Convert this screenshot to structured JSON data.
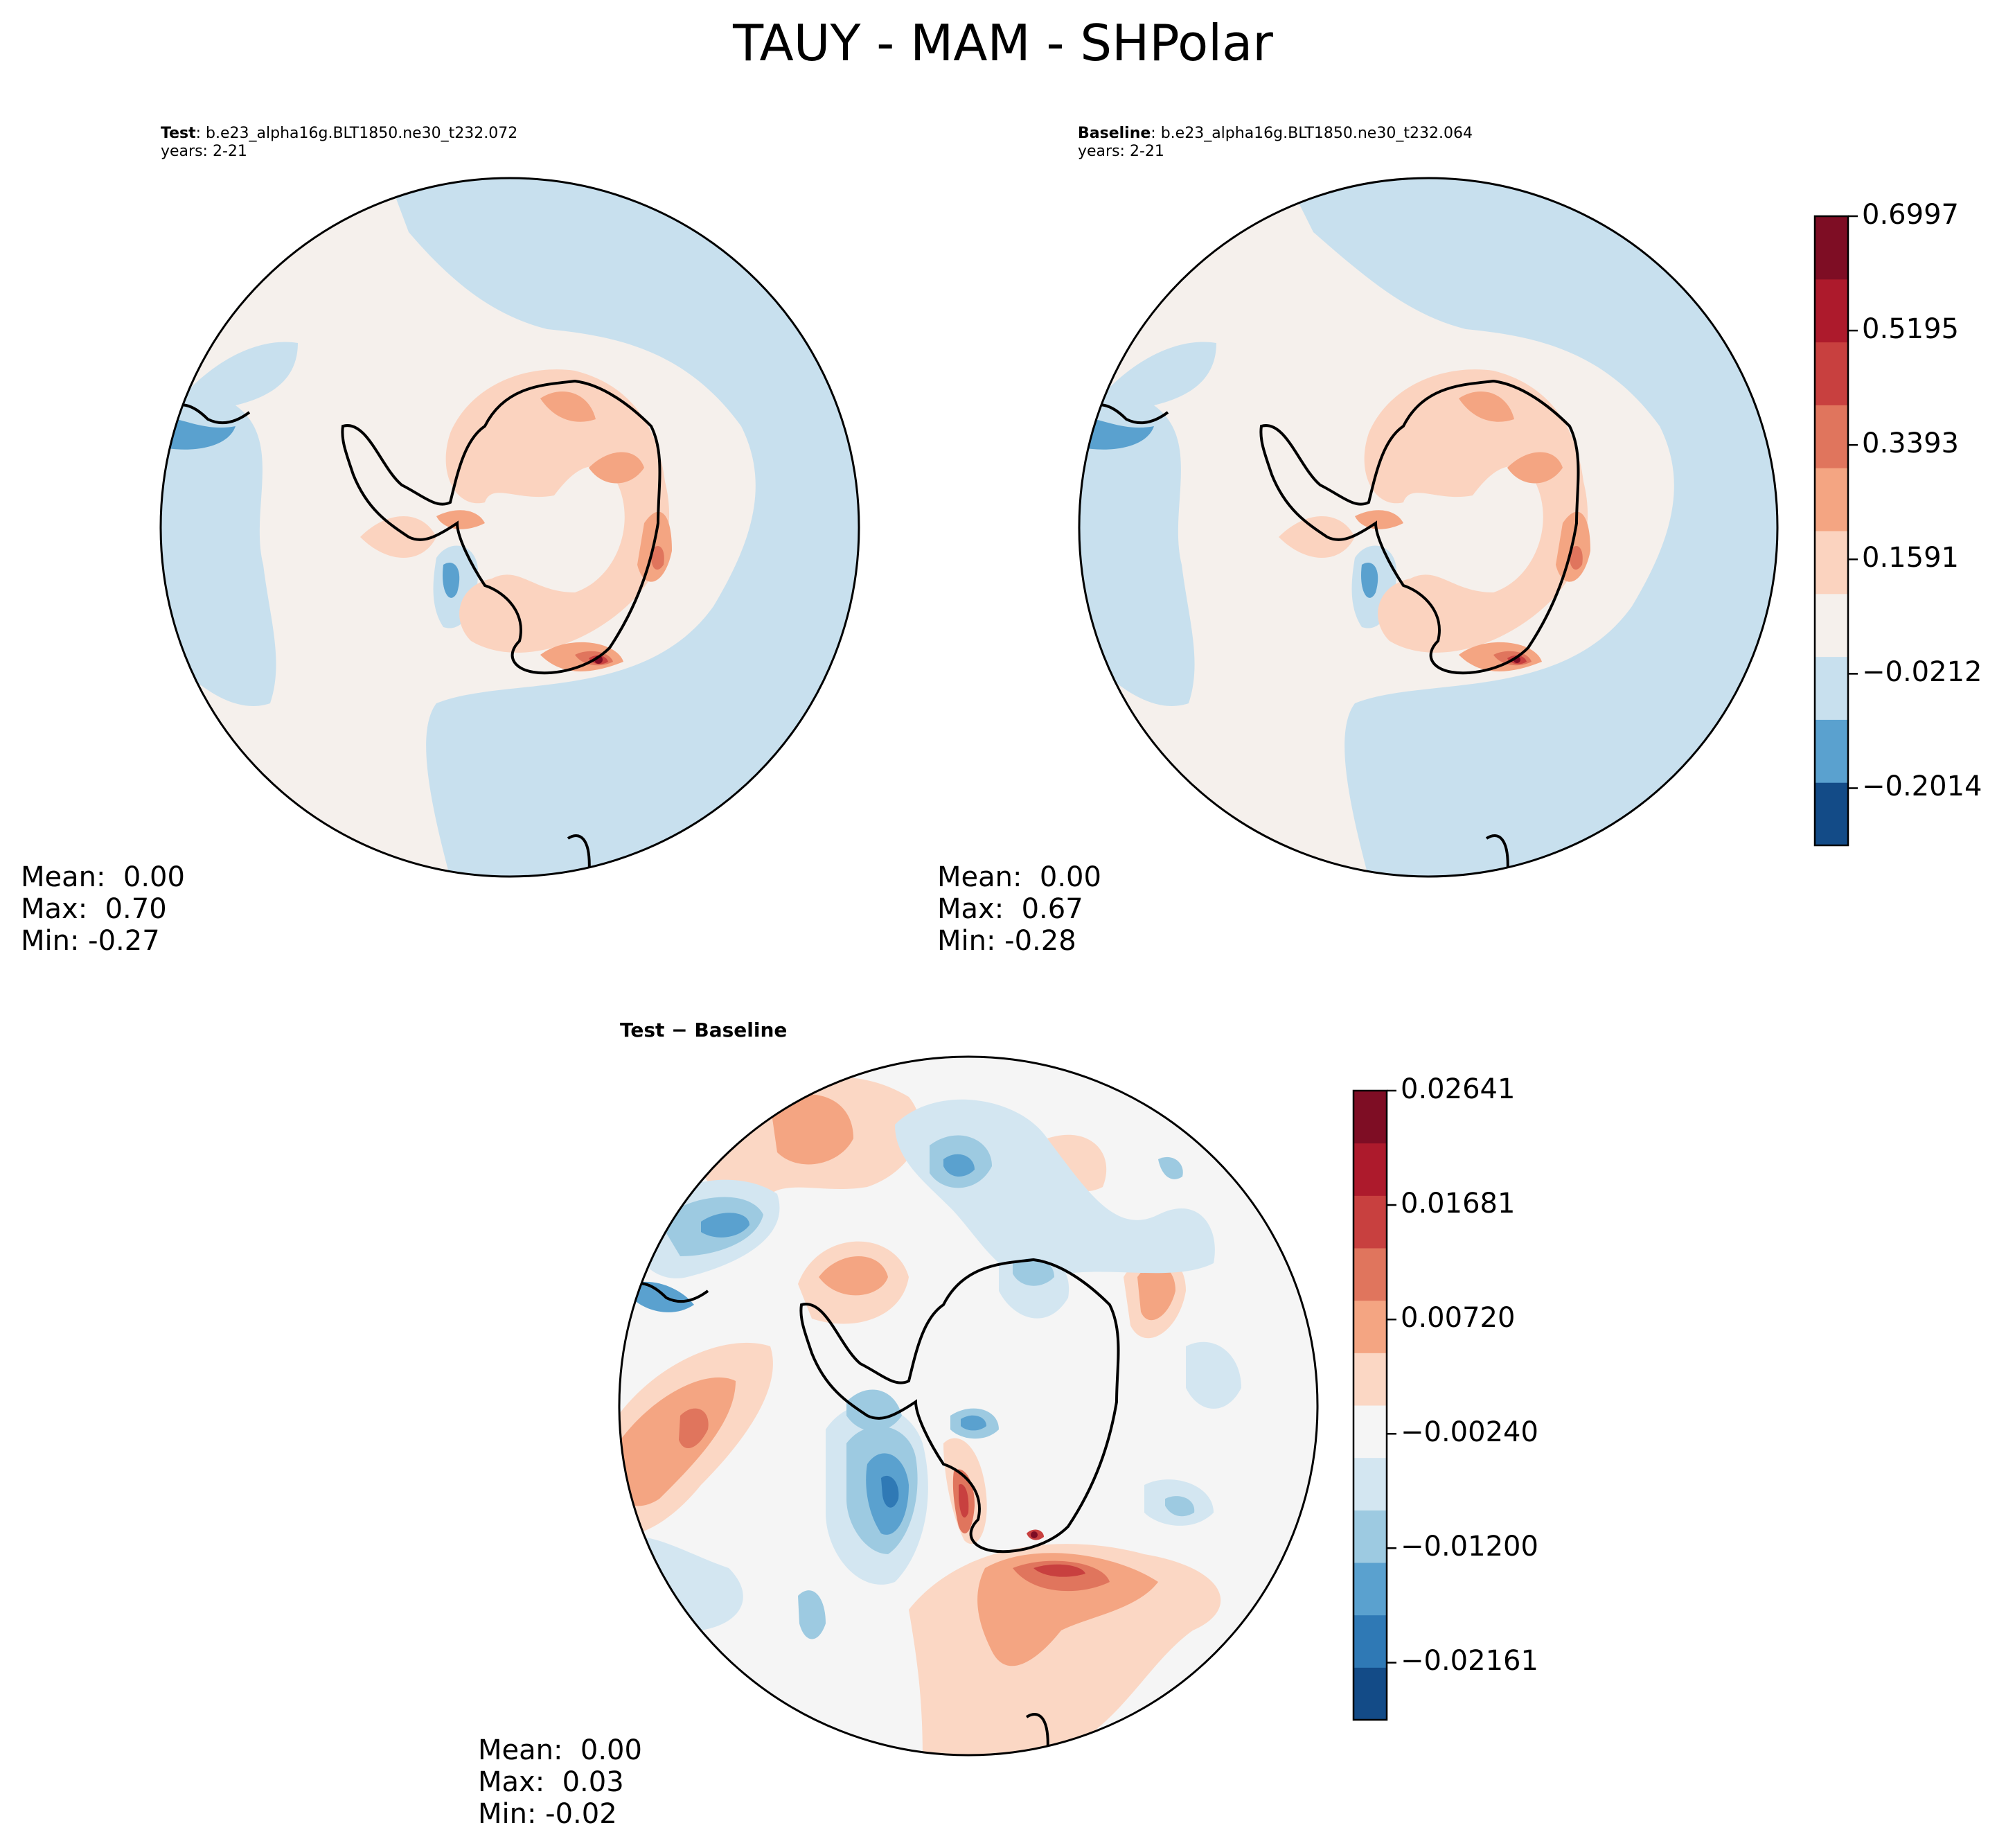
{
  "figure": {
    "title": "TAUY - MAM - SHPolar"
  },
  "panels": {
    "test": {
      "label_bold": "Test",
      "case": ": b.e23_alpha16g.BLT1850.ne30_t232.072",
      "years": "years: 2-21",
      "mean": "Mean:  0.00",
      "max": "Max:  0.70",
      "min": "Min: -0.27"
    },
    "baseline": {
      "label_bold": "Baseline",
      "case": ": b.e23_alpha16g.BLT1850.ne30_t232.064",
      "years": "years: 2-21",
      "mean": "Mean:  0.00",
      "max": "Max:  0.67",
      "min": "Min: -0.28"
    },
    "diff": {
      "title_a": "Test",
      "title_sep": " − ",
      "title_b": "Baseline",
      "mean": "Mean:  0.00",
      "max": "Max:  0.03",
      "min": "Min: -0.02"
    }
  },
  "chart_data": [
    {
      "type": "heatmap",
      "name": "test",
      "projection": "south polar stereographic",
      "variable": "TAUY",
      "season": "MAM",
      "stats": {
        "mean": 0.0,
        "max": 0.7,
        "min": -0.27
      }
    },
    {
      "type": "heatmap",
      "name": "baseline",
      "projection": "south polar stereographic",
      "variable": "TAUY",
      "season": "MAM",
      "stats": {
        "mean": 0.0,
        "max": 0.67,
        "min": -0.28
      }
    },
    {
      "type": "heatmap",
      "name": "test-baseline",
      "projection": "south polar stereographic",
      "stats": {
        "mean": 0.0,
        "max": 0.03,
        "min": -0.02
      }
    }
  ],
  "colorbars": {
    "main": {
      "range": [
        -0.2915,
        0.6997
      ],
      "colors": [
        "#134b87",
        "#5aa1cf",
        "#c8e0ee",
        "#f5f0ec",
        "#fbd3bf",
        "#f4a582",
        "#e0755d",
        "#c8403f",
        "#ad1a2c",
        "#7e0d24"
      ],
      "ticks": [
        {
          "value": -0.2014,
          "label": "−0.2014"
        },
        {
          "value": -0.0212,
          "label": "−0.0212"
        },
        {
          "value": 0.1591,
          "label": "0.1591"
        },
        {
          "value": 0.3393,
          "label": "0.3393"
        },
        {
          "value": 0.5195,
          "label": "0.5195"
        },
        {
          "value": 0.6997,
          "label": "0.6997"
        }
      ]
    },
    "diff": {
      "range": [
        -0.02641,
        0.02641
      ],
      "colors": [
        "#134b87",
        "#2f79b5",
        "#5aa1cf",
        "#9dcae1",
        "#d3e6f1",
        "#f5f5f5",
        "#fbd7c4",
        "#f4a582",
        "#e0755d",
        "#c8403f",
        "#ad1a2c",
        "#7e0d24"
      ],
      "ticks": [
        {
          "value": -0.02161,
          "label": "−0.02161"
        },
        {
          "value": -0.012,
          "label": "−0.01200"
        },
        {
          "value": -0.0024,
          "label": "−0.00240"
        },
        {
          "value": 0.0072,
          "label": "0.00720"
        },
        {
          "value": 0.01681,
          "label": "0.01681"
        },
        {
          "value": 0.02641,
          "label": "0.02641"
        }
      ]
    }
  }
}
